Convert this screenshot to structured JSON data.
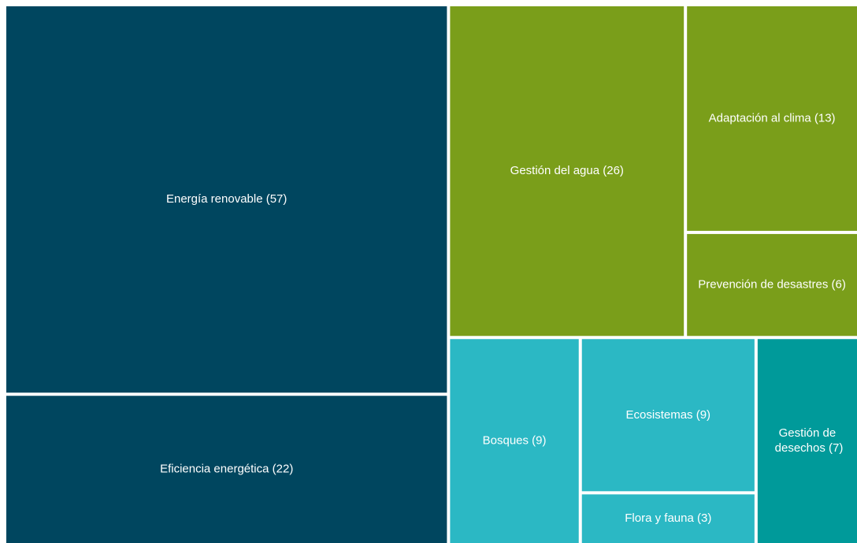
{
  "chart_data": {
    "type": "treemap",
    "groups": [
      {
        "color": "#00465f",
        "labels": [
          "Energía renovable (57)",
          "Eficiencia energética (22)"
        ],
        "values": [
          57,
          22
        ]
      },
      {
        "color": "#7a9e1a",
        "labels": [
          "Gestión del agua (26)",
          "Adaptación al clima (13)",
          "Prevención de desastres (6)"
        ],
        "values": [
          26,
          13,
          6
        ]
      },
      {
        "color": "#2bb8c4",
        "labels": [
          "Bosques (9)",
          "Ecosistemas (9)",
          "Flora y fauna (3)"
        ],
        "values": [
          9,
          9,
          3
        ]
      },
      {
        "color": "#009a9a",
        "labels": [
          "Gestión de desechos (7)"
        ],
        "values": [
          7
        ]
      }
    ]
  }
}
